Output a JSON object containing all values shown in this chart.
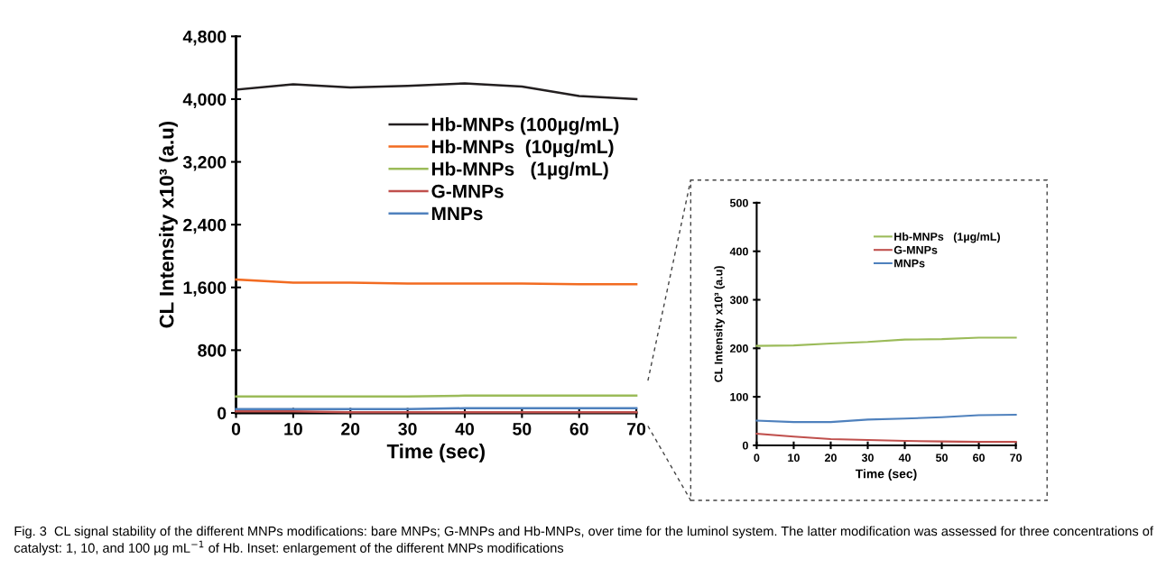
{
  "chart_data": [
    {
      "type": "line",
      "xlabel": "Time (sec)",
      "ylabel": "CL Intensity x10³ (a.u)",
      "x": [
        0,
        10,
        20,
        30,
        40,
        50,
        60,
        70
      ],
      "xlim": [
        0,
        70
      ],
      "xticks": [
        0,
        10,
        20,
        30,
        40,
        50,
        60,
        70
      ],
      "ylim": [
        0,
        4800
      ],
      "yticks": [
        {
          "value": 0,
          "label": "0"
        },
        {
          "value": 800,
          "label": "800"
        },
        {
          "value": 1600,
          "label": "1,600"
        },
        {
          "value": 2400,
          "label": "2,400"
        },
        {
          "value": 3200,
          "label": "3,200"
        },
        {
          "value": 4000,
          "label": "4,000"
        },
        {
          "value": 4800,
          "label": "4,800"
        }
      ],
      "grid": false,
      "legend": "top right",
      "marker": "none",
      "line_style": "solid",
      "series": [
        {
          "name": "Hb-MNPs (100µg/mL)",
          "color": "#231f20",
          "values": [
            4120,
            4190,
            4150,
            4170,
            4200,
            4160,
            4040,
            4000
          ]
        },
        {
          "name": "Hb-MNPs  (10µg/mL)",
          "color": "#f26b21",
          "values": [
            1700,
            1660,
            1660,
            1650,
            1650,
            1650,
            1640,
            1640
          ]
        },
        {
          "name": "Hb-MNPs   (1µg/mL)",
          "color": "#9bbb59",
          "values": [
            210,
            210,
            210,
            210,
            220,
            220,
            220,
            220
          ]
        },
        {
          "name": "G-MNPs",
          "color": "#c0504d",
          "values": [
            20,
            20,
            10,
            10,
            10,
            10,
            10,
            10
          ]
        },
        {
          "name": "MNPs",
          "color": "#4f81bd",
          "values": [
            50,
            50,
            50,
            50,
            60,
            60,
            60,
            60
          ]
        }
      ],
      "annotations": [
        "Fig. 3  CL signal stability of the different MNPs modifications: bare MNPs; G-MNPs and Hb-MNPs, over time for the luminol system. The latter modification was assessed for three concentrations of catalyst: 1, 10, and 100 µg mL$^{−1}$ of Hb. Inset: enlargement of the different MNPs modifications"
      ]
    },
    {
      "type": "line",
      "xlabel": "Time (sec)",
      "ylabel": "CL Intensity x10³ (a.u)",
      "x": [
        0,
        10,
        20,
        30,
        40,
        50,
        60,
        70
      ],
      "xlim": [
        0,
        70
      ],
      "xticks": [
        0,
        10,
        20,
        30,
        40,
        50,
        60,
        70
      ],
      "ylim": [
        0,
        500
      ],
      "yticks": [
        0,
        100,
        200,
        300,
        400,
        500
      ],
      "grid": false,
      "legend": "top right",
      "marker": "none",
      "line_style": "solid",
      "series": [
        {
          "name": "Hb-MNPs   (1µg/mL)",
          "color": "#9bbb59",
          "values": [
            205,
            206,
            210,
            213,
            218,
            219,
            222,
            222
          ]
        },
        {
          "name": "G-MNPs",
          "color": "#c0504d",
          "values": [
            24,
            18,
            13,
            11,
            9,
            8,
            7,
            7
          ]
        },
        {
          "name": "MNPs",
          "color": "#4f81bd",
          "values": [
            51,
            48,
            48,
            53,
            55,
            58,
            62,
            63
          ]
        }
      ]
    }
  ]
}
